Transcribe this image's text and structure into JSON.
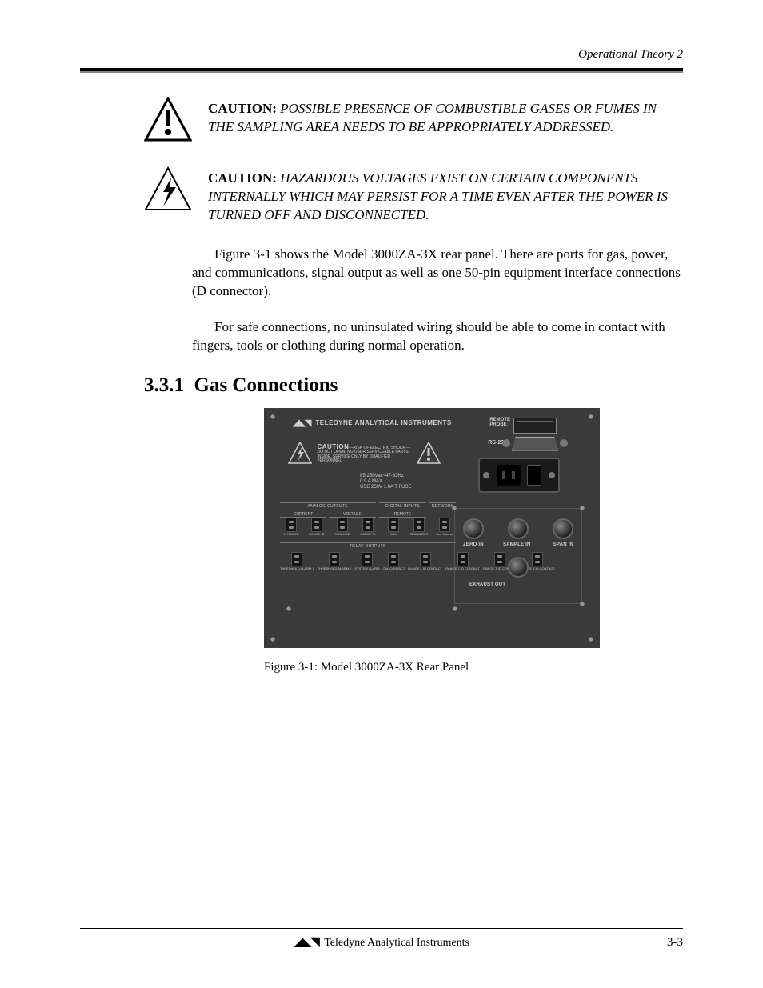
{
  "header": {
    "right": "Operational Theory 2"
  },
  "warnings": [
    {
      "icon": "caution",
      "bold": "CAUTION:",
      "rest": " POSSIBLE PRESENCE OF COMBUSTIBLE GASES OR FUMES IN THE SAMPLING AREA NEEDS TO BE APPROPRIATELY ADDRESSED."
    },
    {
      "icon": "shock",
      "bold": "CAUTION:",
      "rest": " HAZARDOUS VOLTAGES EXIST ON CERTAIN COMPONENTS INTERNALLY WHICH MAY PERSIST FOR A TIME EVEN AFTER THE POWER IS TURNED OFF AND DISCONNECTED."
    }
  ],
  "paras": [
    "Figure 3-1 shows the Model 3000ZA-3X rear panel. There are ports for gas, power, and communications, signal output as well as one 50-pin equipment interface connections (D connector).",
    "For safe connections, no uninsulated wiring should be able to come in contact with fingers, tools or clothing during normal operation."
  ],
  "section": {
    "number": "3.3.1",
    "title": "Gas Connections"
  },
  "panel": {
    "brand": "TELEDYNE ANALYTICAL INSTRUMENTS",
    "remoteLabel": "REMOTE\nPROBE",
    "rs232": "RS-232",
    "caution": {
      "title": "CAUTION",
      "lines": "—RISK OF ELECTRIC SHOCK —DO NOT OPEN. NO USER SERVICEABLE PARTS INSIDE. SERVICE ONLY BY QUALIFIED PERSONNEL."
    },
    "powerSpec": [
      "85-250Vac~47-63Hz",
      "0.9 A MAX",
      "USE 250V 1.0A T FUSE"
    ],
    "analogHeading": "ANALOG OUTPUTS",
    "digitalHeading": "DIGITAL INPUTS",
    "networkHeading": "NETWORK",
    "relayHeading": "RELAY OUTPUTS",
    "analogLabels": [
      "% RANGE",
      "RANGE ID",
      "% RANGE",
      "RANGE ID"
    ],
    "analogSub": [
      "CURRENT",
      "VOLTAGE"
    ],
    "digitalLabels": [
      "CAL",
      "SPAN/ZERO"
    ],
    "digitalSub": "REMOTE",
    "networkSub": "See Manual",
    "relayLabels": [
      "THRESHOLD ALARM 1",
      "THRESHOLD ALARM 2",
      "SYSTEM ALARM",
      "CAL CONTACT",
      "RANGE 1 ID CONTACT",
      "RANGE 2 ID CONTACT",
      "RANGE 3 ID CONTACT",
      "RANGE 4 ID CONTACT"
    ],
    "gas": {
      "zero": "ZERO IN",
      "sample": "SAMPLE IN",
      "span": "SPAN IN",
      "exhaust": "EXHAUST OUT"
    }
  },
  "figureCaption": "Figure 3-1: Model 3000ZA-3X Rear Panel",
  "footer": {
    "company": "Teledyne Analytical Instruments",
    "page": "3-3"
  }
}
